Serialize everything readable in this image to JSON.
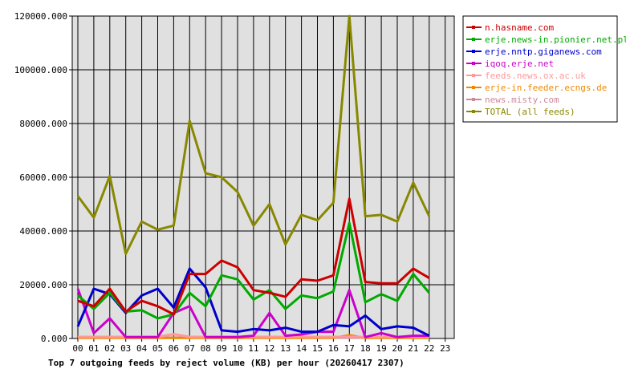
{
  "chart_data": {
    "type": "line",
    "title": "Top 7 outgoing feeds by reject volume (KB) per hour (20260417 2307)",
    "x": [
      "00",
      "01",
      "02",
      "03",
      "04",
      "05",
      "06",
      "07",
      "08",
      "09",
      "10",
      "11",
      "12",
      "13",
      "14",
      "15",
      "16",
      "17",
      "18",
      "19",
      "20",
      "21",
      "22",
      "23"
    ],
    "ylim": [
      0,
      120000
    ],
    "yticks": [
      "0.000",
      "20000.000",
      "40000.000",
      "60000.000",
      "80000.000",
      "100000.000",
      "120000.000"
    ],
    "grid": true,
    "legend_position": "right",
    "series": [
      {
        "name": "n.hasname.com",
        "color": "#cc0000",
        "values": [
          14000,
          12000,
          18500,
          10000,
          14000,
          12000,
          9000,
          24000,
          24000,
          29000,
          26500,
          18000,
          17000,
          15500,
          22000,
          21500,
          23500,
          52000,
          21000,
          20500,
          20500,
          26000,
          22500,
          null
        ]
      },
      {
        "name": "erje.news-in.pionier.net.pl",
        "color": "#00aa00",
        "values": [
          16000,
          11000,
          17000,
          10000,
          10500,
          7500,
          9000,
          17000,
          12000,
          23500,
          22000,
          14500,
          18000,
          11000,
          16000,
          15000,
          17500,
          43000,
          13500,
          16500,
          14000,
          24000,
          17000,
          null
        ]
      },
      {
        "name": "erje.nntp.giganews.com",
        "color": "#0000cc",
        "values": [
          4500,
          18500,
          16500,
          9500,
          16000,
          18500,
          11500,
          26000,
          19000,
          3000,
          2500,
          3500,
          3000,
          4000,
          2500,
          2500,
          5000,
          4500,
          8500,
          3500,
          4500,
          4000,
          1000,
          null
        ]
      },
      {
        "name": "iqoq.erje.net",
        "color": "#cc00cc",
        "values": [
          18500,
          2000,
          7500,
          500,
          500,
          500,
          9500,
          12000,
          500,
          500,
          500,
          1000,
          9500,
          1000,
          1500,
          2500,
          2500,
          18000,
          500,
          2000,
          500,
          1000,
          1000,
          null
        ]
      },
      {
        "name": "feeds.news.ox.ac.uk",
        "color": "#ff9999",
        "values": [
          600,
          600,
          600,
          600,
          600,
          600,
          1600,
          600,
          600,
          600,
          600,
          600,
          600,
          600,
          600,
          600,
          600,
          600,
          600,
          600,
          600,
          600,
          600,
          null
        ]
      },
      {
        "name": "erje-in.feeder.ecngs.de",
        "color": "#ee8800",
        "values": [
          200,
          200,
          200,
          200,
          200,
          200,
          200,
          200,
          200,
          200,
          200,
          200,
          200,
          200,
          200,
          200,
          200,
          1200,
          200,
          200,
          200,
          200,
          200,
          null
        ]
      },
      {
        "name": "news.misty.com",
        "color": "#cc8899",
        "values": [
          300,
          300,
          300,
          300,
          300,
          300,
          300,
          300,
          300,
          300,
          300,
          300,
          300,
          300,
          300,
          300,
          300,
          300,
          300,
          300,
          300,
          300,
          300,
          null
        ]
      },
      {
        "name": "TOTAL (all feeds)",
        "color": "#888800",
        "values": [
          53000,
          45000,
          60500,
          31500,
          43500,
          40500,
          42000,
          81000,
          61500,
          60000,
          54500,
          42000,
          50000,
          35000,
          46000,
          44000,
          50500,
          120000,
          45500,
          46000,
          43500,
          58000,
          45500,
          null
        ]
      }
    ]
  }
}
